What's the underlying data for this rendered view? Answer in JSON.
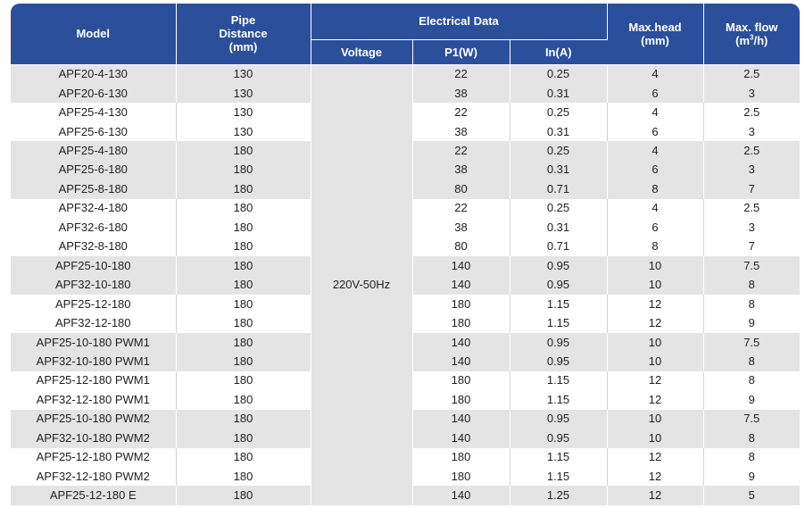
{
  "headers": {
    "model": "Model",
    "pipe_distance": [
      "Pipe",
      "Distance",
      "(mm)"
    ],
    "electrical_data": "Electrical Data",
    "voltage": "Voltage",
    "p1": "P1(W)",
    "in": "In(A)",
    "max_head": [
      "Max.head",
      "(mm)"
    ],
    "max_flow_line1": "Max. flow",
    "max_flow_line2_pre": "(m",
    "max_flow_sup": "3",
    "max_flow_line2_post": "/h)"
  },
  "voltage_value": "220V-50Hz",
  "rows": [
    {
      "model": "APF20-4-130",
      "pipe": "130",
      "p1": "22",
      "in": "0.25",
      "head": "4",
      "flow": "2.5"
    },
    {
      "model": "APF20-6-130",
      "pipe": "130",
      "p1": "38",
      "in": "0.31",
      "head": "6",
      "flow": "3"
    },
    {
      "model": "APF25-4-130",
      "pipe": "130",
      "p1": "22",
      "in": "0.25",
      "head": "4",
      "flow": "2.5"
    },
    {
      "model": "APF25-6-130",
      "pipe": "130",
      "p1": "38",
      "in": "0.31",
      "head": "6",
      "flow": "3"
    },
    {
      "model": "APF25-4-180",
      "pipe": "180",
      "p1": "22",
      "in": "0.25",
      "head": "4",
      "flow": "2.5"
    },
    {
      "model": "APF25-6-180",
      "pipe": "180",
      "p1": "38",
      "in": "0.31",
      "head": "6",
      "flow": "3"
    },
    {
      "model": "APF25-8-180",
      "pipe": "180",
      "p1": "80",
      "in": "0.71",
      "head": "8",
      "flow": "7"
    },
    {
      "model": "APF32-4-180",
      "pipe": "180",
      "p1": "22",
      "in": "0.25",
      "head": "4",
      "flow": "2.5"
    },
    {
      "model": "APF32-6-180",
      "pipe": "180",
      "p1": "38",
      "in": "0.31",
      "head": "6",
      "flow": "3"
    },
    {
      "model": "APF32-8-180",
      "pipe": "180",
      "p1": "80",
      "in": "0.71",
      "head": "8",
      "flow": "7"
    },
    {
      "model": "APF25-10-180",
      "pipe": "180",
      "p1": "140",
      "in": "0.95",
      "head": "10",
      "flow": "7.5"
    },
    {
      "model": "APF32-10-180",
      "pipe": "180",
      "p1": "140",
      "in": "0.95",
      "head": "10",
      "flow": "8"
    },
    {
      "model": "APF25-12-180",
      "pipe": "180",
      "p1": "180",
      "in": "1.15",
      "head": "12",
      "flow": "8"
    },
    {
      "model": "APF32-12-180",
      "pipe": "180",
      "p1": "180",
      "in": "1.15",
      "head": "12",
      "flow": "9"
    },
    {
      "model": "APF25-10-180 PWM1",
      "pipe": "180",
      "p1": "140",
      "in": "0.95",
      "head": "10",
      "flow": "7.5"
    },
    {
      "model": "APF32-10-180 PWM1",
      "pipe": "180",
      "p1": "140",
      "in": "0.95",
      "head": "10",
      "flow": "8"
    },
    {
      "model": "APF25-12-180 PWM1",
      "pipe": "180",
      "p1": "180",
      "in": "1.15",
      "head": "12",
      "flow": "8"
    },
    {
      "model": "APF32-12-180 PWM1",
      "pipe": "180",
      "p1": "180",
      "in": "1.15",
      "head": "12",
      "flow": "9"
    },
    {
      "model": "APF25-10-180 PWM2",
      "pipe": "180",
      "p1": "140",
      "in": "0.95",
      "head": "10",
      "flow": "7.5"
    },
    {
      "model": "APF32-10-180 PWM2",
      "pipe": "180",
      "p1": "140",
      "in": "0.95",
      "head": "10",
      "flow": "8"
    },
    {
      "model": "APF25-12-180 PWM2",
      "pipe": "180",
      "p1": "180",
      "in": "1.15",
      "head": "12",
      "flow": "8"
    },
    {
      "model": "APF32-12-180 PWM2",
      "pipe": "180",
      "p1": "180",
      "in": "1.15",
      "head": "12",
      "flow": "9"
    },
    {
      "model": "APF25-12-180 E",
      "pipe": "180",
      "p1": "140",
      "in": "1.25",
      "head": "12",
      "flow": "5"
    }
  ],
  "row_groups": [
    2,
    2,
    3,
    3,
    2,
    2,
    2,
    2,
    2,
    2,
    1
  ],
  "colors": {
    "header_bg": "#2b4f9b",
    "shade_bg": "#e4e4e5",
    "plain_bg": "#ffffff"
  }
}
